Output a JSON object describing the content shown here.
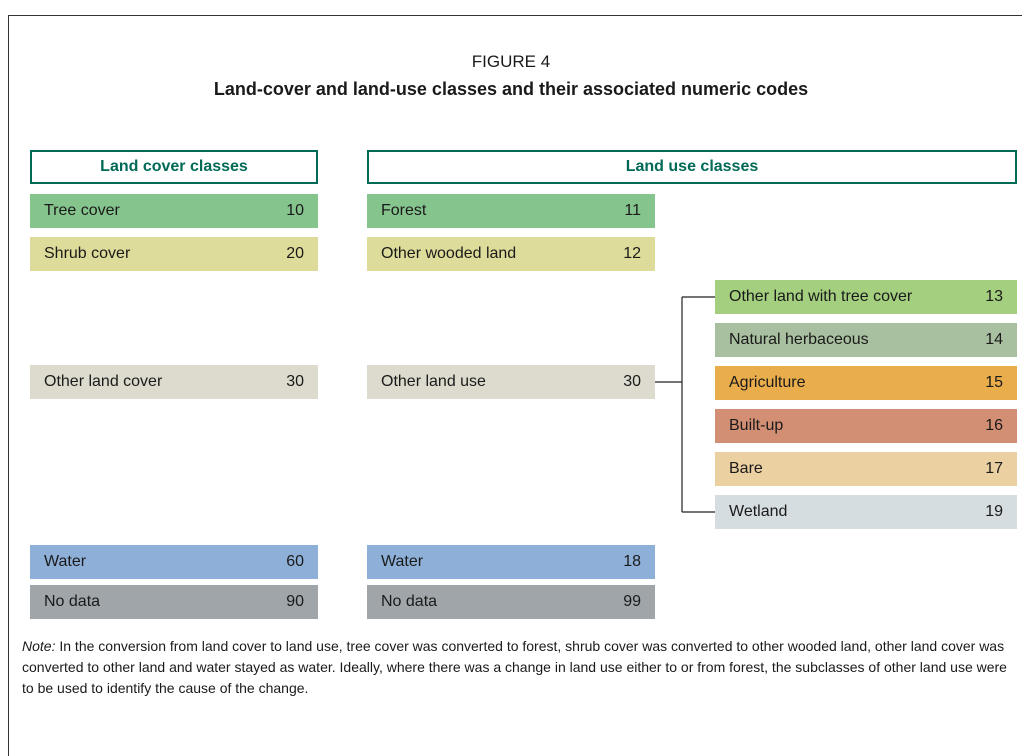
{
  "figure_label": "FIGURE 4",
  "title": "Land-cover and land-use classes and their associated numeric codes",
  "land_cover": {
    "header": "Land cover classes",
    "items": [
      {
        "label": "Tree cover",
        "code": 10,
        "color": "#85c48d"
      },
      {
        "label": "Shrub cover",
        "code": 20,
        "color": "#dedc9a"
      },
      {
        "label": "Other land cover",
        "code": 30,
        "color": "#dddbcd"
      },
      {
        "label": "Water",
        "code": 60,
        "color": "#8eb0d8"
      },
      {
        "label": "No data",
        "code": 90,
        "color": "#9fa5a8"
      }
    ]
  },
  "land_use": {
    "header": "Land use classes",
    "items": [
      {
        "label": "Forest",
        "code": 11,
        "color": "#85c48d"
      },
      {
        "label": "Other wooded land",
        "code": 12,
        "color": "#dedc9a"
      },
      {
        "label": "Other land use",
        "code": 30,
        "color": "#dddbcd"
      },
      {
        "label": "Water",
        "code": 18,
        "color": "#8eb0d8"
      },
      {
        "label": "No data",
        "code": 99,
        "color": "#9fa5a8"
      }
    ]
  },
  "subclasses": [
    {
      "label": "Other land with tree cover",
      "code": 13,
      "color": "#a3cf7e"
    },
    {
      "label": "Natural herbaceous",
      "code": 14,
      "color": "#a9c0a0"
    },
    {
      "label": "Agriculture",
      "code": 15,
      "color": "#e9ad4c"
    },
    {
      "label": "Built-up",
      "code": 16,
      "color": "#d28f74"
    },
    {
      "label": "Bare",
      "code": 17,
      "color": "#ebd0a1"
    },
    {
      "label": "Wetland",
      "code": 19,
      "color": "#d6dde0"
    }
  ],
  "note": {
    "label": "Note:",
    "text": "In the conversion from land cover to land use, tree cover was converted to forest, shrub cover was converted to other wooded land, other land cover was converted to other land and water stayed as water. Ideally, where there was a change in land use either to or from forest, the subclasses of other land use were to be used to identify the cause of the change."
  }
}
